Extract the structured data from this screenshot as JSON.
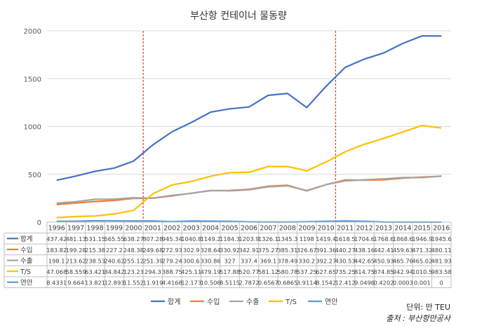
{
  "chart_data": {
    "type": "line",
    "title": "부산항 컨테이너 물동량",
    "categories": [
      "1996",
      "1997",
      "1998",
      "1999",
      "2000",
      "2001",
      "2002",
      "2003",
      "2004",
      "2005",
      "2006",
      "2007",
      "2008",
      "2009",
      "2010",
      "2011",
      "2012",
      "2013",
      "2014",
      "2015",
      "2016"
    ],
    "ylim": [
      0,
      2000
    ],
    "yticks": [
      0,
      500,
      1000,
      1500,
      2000
    ],
    "grid": true,
    "legend_position": "bottom",
    "reference_lines_x": [
      "2000",
      "2010"
    ],
    "series": [
      {
        "name": "합계",
        "color": "#4472c4",
        "values": [
          437.42,
          481.13,
          531.15,
          565.55,
          638.27,
          807.28,
          945.34,
          1040.8,
          1149.2,
          1184.3,
          1203.9,
          1326.1,
          1345.3,
          1198,
          1419.4,
          1618.5,
          1704.6,
          1768.6,
          1868.6,
          1946.9,
          1945.6
        ],
        "labels": [
          "437.42",
          "481.13",
          "531.15",
          "565.55",
          "638.27",
          "807.28",
          "945.34",
          "1040.8",
          "1149.2",
          "1184.3",
          "1203.9",
          "1326.1",
          "1345.3",
          "1198",
          "1419.4",
          "1618.5",
          "1704.6",
          "1768.6",
          "1868.6",
          "1946.9",
          "1945.6"
        ]
      },
      {
        "name": "수입",
        "color": "#ed7d31",
        "values": [
          183.82,
          199.28,
          215.38,
          227.2,
          248.38,
          249.68,
          272.93,
          302.9,
          328.64,
          330.92,
          342.91,
          375.27,
          385.31,
          326.67,
          391.36,
          440.27,
          438.16,
          442.41,
          459.63,
          471.32,
          480.11
        ],
        "labels": [
          "183.82",
          "199.28",
          "215.38",
          "227.2",
          "248.38",
          "249.68",
          "272.93",
          "302.9",
          "328.64",
          "330.92",
          "342.91",
          "375.27",
          "385.31",
          "326.67",
          "391.36",
          "440.27",
          "438.16",
          "442.41",
          "459.63",
          "471.32",
          "480.11"
        ]
      },
      {
        "name": "수출",
        "color": "#a5a5a5",
        "values": [
          198.1,
          213.62,
          238.53,
          240.62,
          255.12,
          251.39,
          279.24,
          300.6,
          330.86,
          327,
          337.4,
          369.1,
          378.49,
          330.2,
          392.27,
          430.53,
          442.65,
          450.93,
          465.76,
          465.02,
          481.93
        ],
        "labels": [
          "198.1",
          "213.62",
          "238.53",
          "240.62",
          "255.12",
          "251.39",
          "279.24",
          "300.6",
          "330.86",
          "327",
          "337.4",
          "369.1",
          "378.49",
          "330.2",
          "392.27",
          "430.53",
          "442.65",
          "450.93",
          "465.76",
          "465.02",
          "481.93"
        ]
      },
      {
        "name": "T/S",
        "color": "#ffc000",
        "values": [
          47.068,
          58.559,
          63.421,
          84.842,
          123.23,
          294.3,
          388.75,
          425.11,
          479.19,
          517.88,
          520.77,
          581.12,
          580.78,
          537.25,
          627.65,
          735.25,
          814.75,
          874.85,
          942.94,
          1010.5,
          983.58
        ],
        "labels": [
          "47.068",
          "58.559",
          "63.421",
          "84.842",
          "123.23",
          "294.3",
          "388.75",
          "425.11",
          "479.19",
          "517.88",
          "520.77",
          "581.12",
          "580.78",
          "537.25",
          "627.65",
          "735.25",
          "814.75",
          "874.85",
          "942.94",
          "1010.5",
          "983.58"
        ]
      },
      {
        "name": "연안",
        "color": "#5b9bd5",
        "values": [
          8.4331,
          9.664,
          13.821,
          12.893,
          11.552,
          11.919,
          4.4168,
          12.173,
          10.506,
          8.5115,
          2.7872,
          0.6567,
          0.6865,
          3.9114,
          8.1542,
          12.412,
          9.0496,
          0.4202,
          0.0003,
          0.001,
          0
        ],
        "labels": [
          "8.4331",
          "9.664",
          "13.821",
          "12.893",
          "11.552",
          "11.919",
          "4.4168",
          "12.173",
          "10.506",
          "8.5115",
          "2.7872",
          "0.6567",
          "0.6865",
          "3.9114",
          "8.1542",
          "12.412",
          "9.0496",
          "0.4202",
          "0.0003",
          "0.001",
          "0"
        ]
      }
    ]
  },
  "notes": {
    "unit": "단위: 만 TEU",
    "source": "출처 : 부산항만공사"
  }
}
